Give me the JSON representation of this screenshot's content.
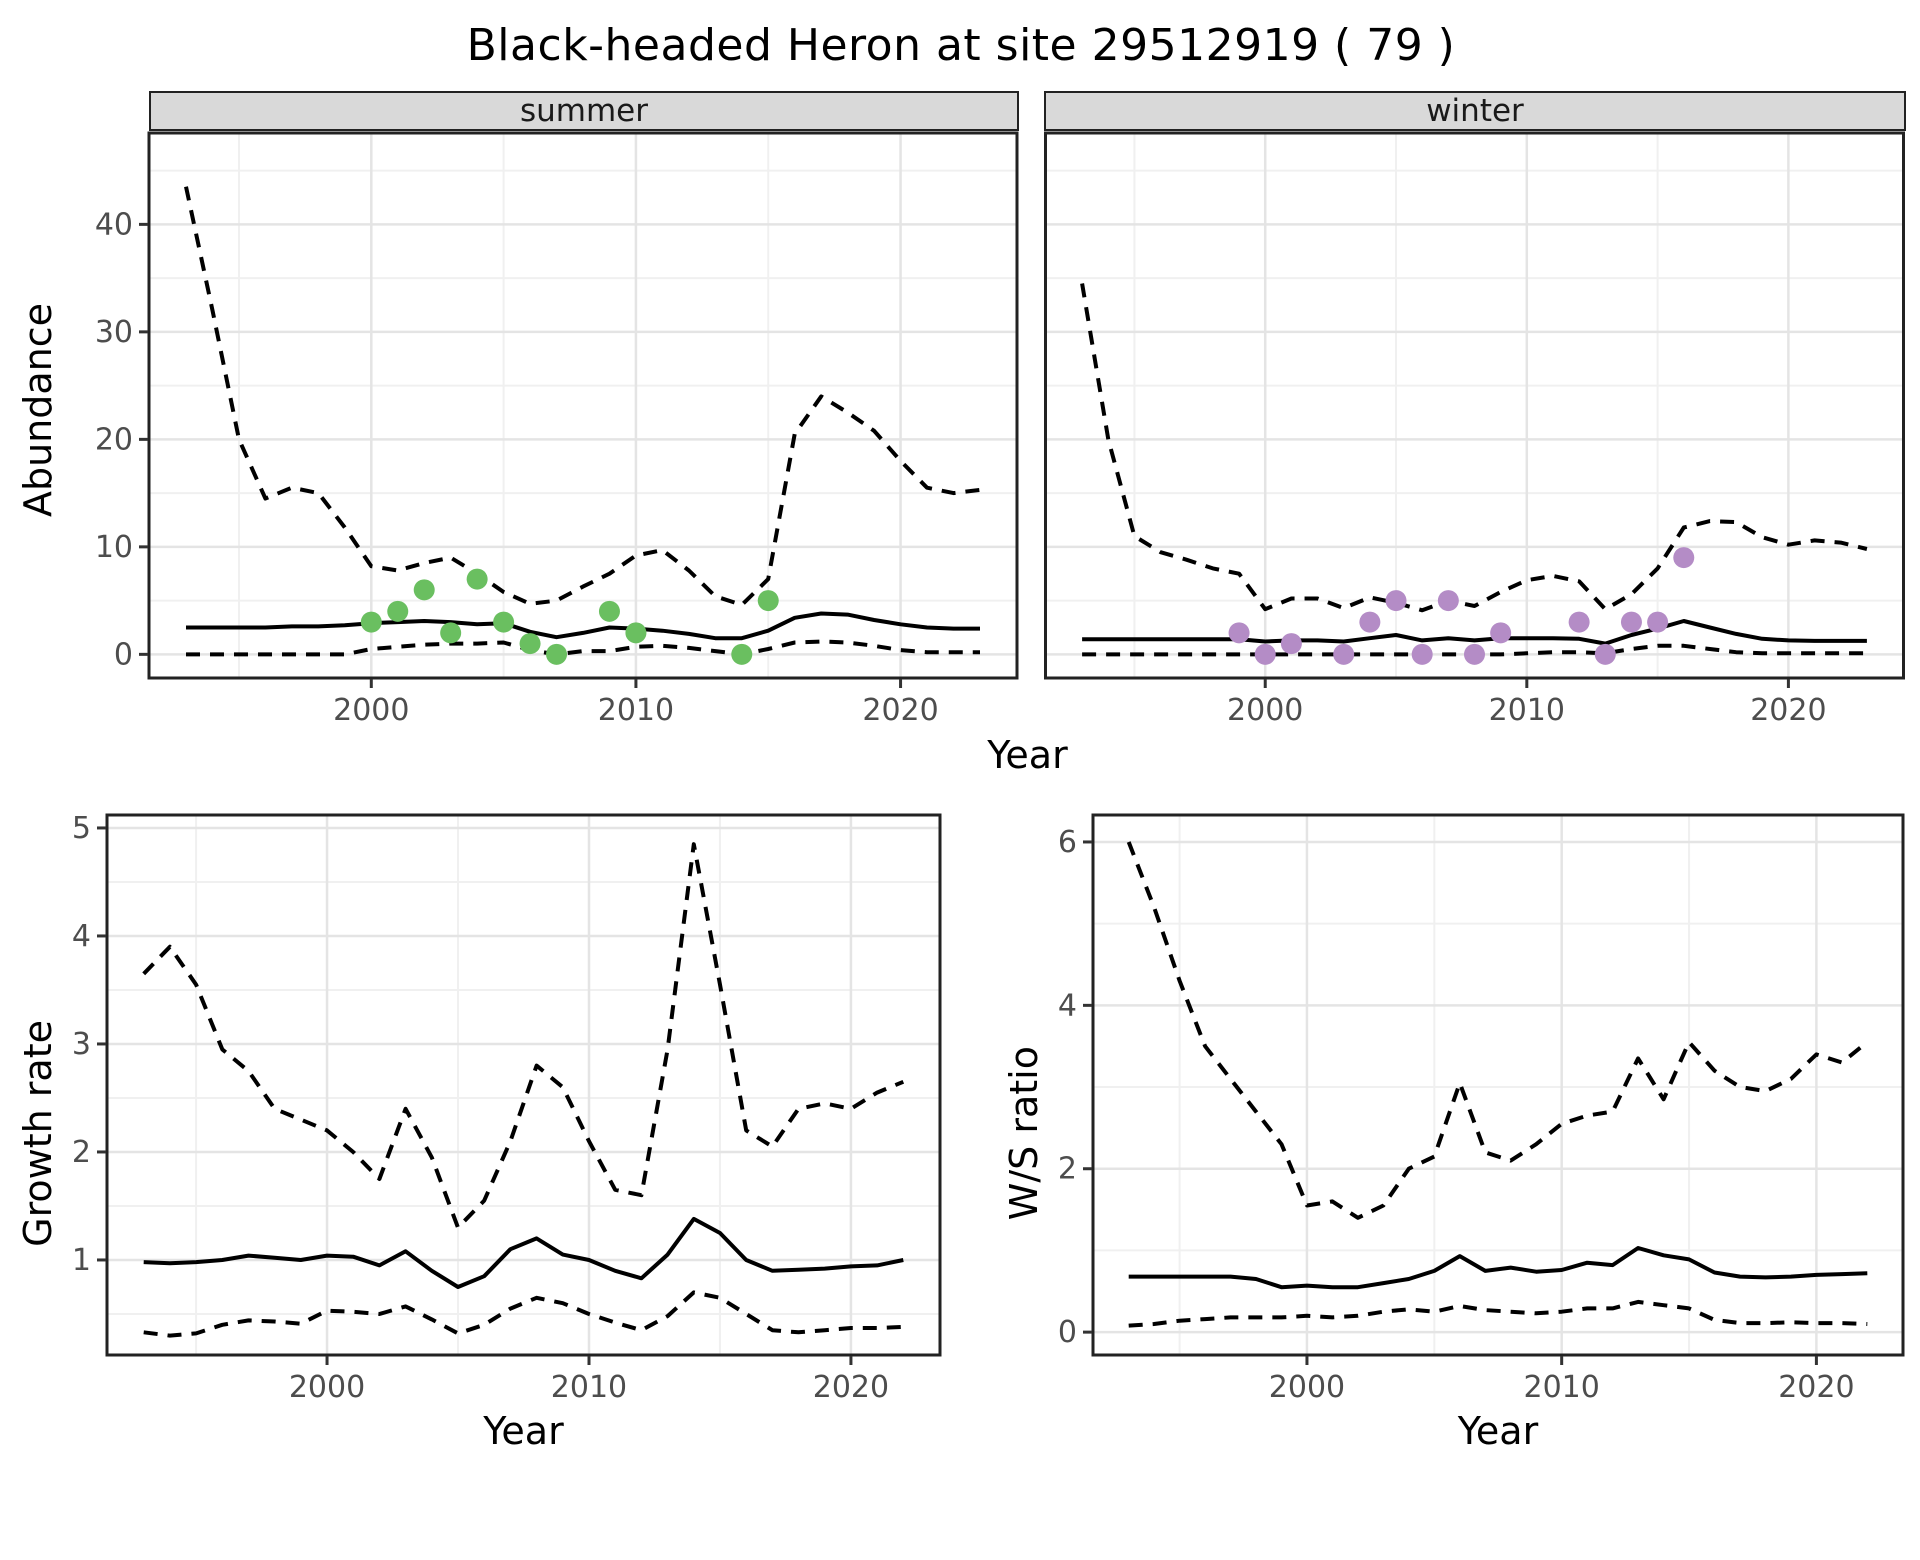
{
  "header": {
    "title": "Black-headed Heron at site 29512919 ( 79 )"
  },
  "axes": {
    "year_label": "Year",
    "abundance_label": "Abundance",
    "growth_label": "Growth rate",
    "ws_label": "W/S ratio"
  },
  "colors": {
    "summer_point": "#6abf60",
    "winter_point": "#b48cc6",
    "line": "#000000",
    "tick_label": "#4d4d4d",
    "strip_bg": "#d9d9d9",
    "panel_border": "#222222",
    "grid_major": "#e4e4e4",
    "grid_minor": "#f0f0f0"
  },
  "chart_data": [
    {
      "id": "summer",
      "type": "line",
      "facet_label": "summer",
      "x_domain": [
        1991.6,
        2024.4
      ],
      "y_domain": [
        -2.2,
        48.5
      ],
      "x_major": [
        2000,
        2010,
        2020
      ],
      "x_minor": [
        1995,
        2005,
        2015
      ],
      "y_major": [
        0,
        10,
        20,
        30,
        40
      ],
      "y_minor": [
        5,
        15,
        25,
        35,
        45
      ],
      "x_tick_labels": [
        "2000",
        "2010",
        "2020"
      ],
      "y_tick_labels": [
        "0",
        "10",
        "20",
        "30",
        "40"
      ],
      "years": [
        1993,
        1994,
        1995,
        1996,
        1997,
        1998,
        1999,
        2000,
        2001,
        2002,
        2003,
        2004,
        2005,
        2006,
        2007,
        2008,
        2009,
        2010,
        2011,
        2012,
        2013,
        2014,
        2015,
        2016,
        2017,
        2018,
        2019,
        2020,
        2021,
        2022,
        2023
      ],
      "series": [
        {
          "name": "upper 95% CI",
          "style": "dashed",
          "values": [
            43.5,
            32,
            20,
            14.5,
            15.5,
            15,
            11.8,
            8.2,
            7.8,
            8.5,
            9,
            7.5,
            5.8,
            4.7,
            5,
            6.3,
            7.5,
            9.2,
            9.7,
            7.8,
            5.4,
            4.6,
            7,
            20.5,
            24,
            22.5,
            20.8,
            18,
            15.5,
            15,
            15.3
          ]
        },
        {
          "name": "median",
          "style": "solid",
          "values": [
            2.5,
            2.5,
            2.5,
            2.5,
            2.6,
            2.6,
            2.7,
            2.9,
            3.0,
            3.1,
            3.0,
            2.8,
            2.9,
            2.1,
            1.6,
            2.0,
            2.5,
            2.4,
            2.2,
            1.9,
            1.5,
            1.5,
            2.2,
            3.4,
            3.8,
            3.7,
            3.2,
            2.8,
            2.5,
            2.4,
            2.4
          ]
        },
        {
          "name": "lower 95% CI",
          "style": "dashed",
          "values": [
            0,
            0,
            0,
            0,
            0,
            0,
            0,
            0.5,
            0.7,
            0.9,
            1.0,
            1.0,
            1.1,
            0.4,
            0,
            0.3,
            0.3,
            0.7,
            0.8,
            0.6,
            0.3,
            0,
            0.5,
            1.1,
            1.2,
            1.1,
            0.8,
            0.4,
            0.2,
            0.2,
            0.2
          ]
        }
      ],
      "observations": {
        "color_key": "summer_point",
        "points": [
          [
            2000,
            3
          ],
          [
            2001,
            4
          ],
          [
            2002,
            6
          ],
          [
            2003,
            2
          ],
          [
            2004,
            7
          ],
          [
            2005,
            3
          ],
          [
            2006,
            1
          ],
          [
            2007,
            0
          ],
          [
            2009,
            4
          ],
          [
            2010,
            2
          ],
          [
            2014,
            0
          ],
          [
            2015,
            5
          ]
        ]
      }
    },
    {
      "id": "winter",
      "type": "line",
      "facet_label": "winter",
      "x_domain": [
        1991.6,
        2024.4
      ],
      "y_domain": [
        -2.2,
        48.5
      ],
      "x_major": [
        2000,
        2010,
        2020
      ],
      "x_minor": [
        1995,
        2005,
        2015
      ],
      "y_major": [
        0,
        10,
        20,
        30,
        40
      ],
      "y_minor": [
        5,
        15,
        25,
        35,
        45
      ],
      "x_tick_labels": [
        "2000",
        "2010",
        "2020"
      ],
      "y_tick_labels": [],
      "years": [
        1993,
        1994,
        1995,
        1996,
        1997,
        1998,
        1999,
        2000,
        2001,
        2002,
        2003,
        2004,
        2005,
        2006,
        2007,
        2008,
        2009,
        2010,
        2011,
        2012,
        2013,
        2014,
        2015,
        2016,
        2017,
        2018,
        2019,
        2020,
        2021,
        2022,
        2023
      ],
      "series": [
        {
          "name": "upper 95% CI",
          "style": "dashed",
          "values": [
            34.5,
            20,
            11,
            9.5,
            8.8,
            8,
            7.5,
            4.2,
            5.2,
            5.2,
            4.3,
            5.3,
            4.8,
            4.1,
            5.0,
            4.5,
            5.8,
            6.9,
            7.3,
            6.8,
            4.2,
            5.6,
            8,
            11.8,
            12.4,
            12.3,
            10.9,
            10.2,
            10.6,
            10.4,
            9.8
          ]
        },
        {
          "name": "median",
          "style": "solid",
          "values": [
            1.4,
            1.4,
            1.4,
            1.4,
            1.4,
            1.4,
            1.4,
            1.2,
            1.3,
            1.3,
            1.2,
            1.5,
            1.8,
            1.3,
            1.5,
            1.3,
            1.5,
            1.5,
            1.5,
            1.45,
            1.0,
            1.8,
            2.4,
            3.1,
            2.5,
            1.9,
            1.45,
            1.3,
            1.25,
            1.25,
            1.25
          ]
        },
        {
          "name": "lower 95% CI",
          "style": "dashed",
          "values": [
            0,
            0,
            0,
            0,
            0,
            0,
            0,
            0,
            0,
            0,
            0,
            0,
            0,
            0,
            0,
            0,
            0,
            0.1,
            0.2,
            0.2,
            0.1,
            0.5,
            0.8,
            0.8,
            0.5,
            0.2,
            0.1,
            0.1,
            0.1,
            0.1,
            0.1
          ]
        }
      ],
      "observations": {
        "color_key": "winter_point",
        "points": [
          [
            1999,
            2
          ],
          [
            2000,
            0
          ],
          [
            2001,
            1
          ],
          [
            2003,
            0
          ],
          [
            2004,
            3
          ],
          [
            2005,
            5
          ],
          [
            2006,
            0
          ],
          [
            2007,
            5
          ],
          [
            2008,
            0
          ],
          [
            2009,
            2
          ],
          [
            2012,
            3
          ],
          [
            2013,
            0
          ],
          [
            2014,
            3
          ],
          [
            2015,
            3
          ],
          [
            2016,
            9
          ]
        ]
      }
    },
    {
      "id": "growth",
      "type": "line",
      "x_domain": [
        1991.6,
        2023.4
      ],
      "y_domain": [
        0.12,
        5.12
      ],
      "x_major": [
        2000,
        2010,
        2020
      ],
      "x_minor": [
        1995,
        2005,
        2015
      ],
      "y_major": [
        1,
        2,
        3,
        4,
        5
      ],
      "y_minor": [
        0.5,
        1.5,
        2.5,
        3.5,
        4.5
      ],
      "x_tick_labels": [
        "2000",
        "2010",
        "2020"
      ],
      "y_tick_labels": [
        "1",
        "2",
        "3",
        "4",
        "5"
      ],
      "years": [
        1993,
        1994,
        1995,
        1996,
        1997,
        1998,
        1999,
        2000,
        2001,
        2002,
        2003,
        2004,
        2005,
        2006,
        2007,
        2008,
        2009,
        2010,
        2011,
        2012,
        2013,
        2014,
        2015,
        2016,
        2017,
        2018,
        2019,
        2020,
        2021,
        2022
      ],
      "series": [
        {
          "name": "upper 95% CI",
          "style": "dashed",
          "values": [
            3.65,
            3.9,
            3.55,
            2.95,
            2.75,
            2.4,
            2.3,
            2.2,
            2.0,
            1.75,
            2.4,
            1.95,
            1.3,
            1.55,
            2.1,
            2.8,
            2.6,
            2.1,
            1.65,
            1.6,
            2.95,
            4.85,
            3.55,
            2.2,
            2.05,
            2.4,
            2.45,
            2.4,
            2.55,
            2.65
          ]
        },
        {
          "name": "median",
          "style": "solid",
          "values": [
            0.98,
            0.97,
            0.98,
            1.0,
            1.04,
            1.02,
            1.0,
            1.04,
            1.03,
            0.95,
            1.08,
            0.9,
            0.75,
            0.85,
            1.1,
            1.2,
            1.05,
            1.0,
            0.9,
            0.83,
            1.05,
            1.38,
            1.25,
            1.0,
            0.9,
            0.91,
            0.92,
            0.94,
            0.95,
            1.0
          ]
        },
        {
          "name": "lower 95% CI",
          "style": "dashed",
          "values": [
            0.33,
            0.3,
            0.32,
            0.4,
            0.44,
            0.43,
            0.41,
            0.53,
            0.52,
            0.5,
            0.57,
            0.45,
            0.32,
            0.4,
            0.55,
            0.65,
            0.6,
            0.5,
            0.42,
            0.35,
            0.48,
            0.7,
            0.65,
            0.5,
            0.35,
            0.33,
            0.35,
            0.37,
            0.37,
            0.38
          ]
        }
      ]
    },
    {
      "id": "ws",
      "type": "line",
      "x_domain": [
        1991.6,
        2023.4
      ],
      "y_domain": [
        -0.28,
        6.33
      ],
      "x_major": [
        2000,
        2010,
        2020
      ],
      "x_minor": [
        1995,
        2005,
        2015
      ],
      "y_major": [
        0,
        2,
        4,
        6
      ],
      "y_minor": [
        1,
        3,
        5
      ],
      "x_tick_labels": [
        "2000",
        "2010",
        "2020"
      ],
      "y_tick_labels": [
        "0",
        "2",
        "4",
        "6"
      ],
      "years": [
        1993,
        1994,
        1995,
        1996,
        1997,
        1998,
        1999,
        2000,
        2001,
        2002,
        2003,
        2004,
        2005,
        2006,
        2007,
        2008,
        2009,
        2010,
        2011,
        2012,
        2013,
        2014,
        2015,
        2016,
        2017,
        2018,
        2019,
        2020,
        2021,
        2022
      ],
      "series": [
        {
          "name": "upper 95% CI",
          "style": "dashed",
          "values": [
            6.0,
            5.2,
            4.3,
            3.5,
            3.1,
            2.7,
            2.3,
            1.55,
            1.6,
            1.4,
            1.55,
            2.0,
            2.15,
            3.05,
            2.2,
            2.1,
            2.3,
            2.55,
            2.65,
            2.7,
            3.35,
            2.85,
            3.55,
            3.2,
            3.0,
            2.95,
            3.1,
            3.4,
            3.3,
            3.55
          ]
        },
        {
          "name": "median",
          "style": "solid",
          "values": [
            0.68,
            0.68,
            0.68,
            0.68,
            0.68,
            0.65,
            0.55,
            0.57,
            0.55,
            0.55,
            0.6,
            0.65,
            0.75,
            0.93,
            0.75,
            0.79,
            0.74,
            0.76,
            0.85,
            0.82,
            1.03,
            0.94,
            0.89,
            0.73,
            0.68,
            0.67,
            0.68,
            0.7,
            0.71,
            0.72
          ]
        },
        {
          "name": "lower 95% CI",
          "style": "dashed",
          "values": [
            0.08,
            0.1,
            0.14,
            0.16,
            0.18,
            0.18,
            0.18,
            0.2,
            0.18,
            0.2,
            0.25,
            0.28,
            0.25,
            0.32,
            0.27,
            0.25,
            0.23,
            0.25,
            0.29,
            0.29,
            0.37,
            0.33,
            0.29,
            0.15,
            0.11,
            0.11,
            0.12,
            0.11,
            0.11,
            0.1
          ]
        }
      ]
    }
  ]
}
